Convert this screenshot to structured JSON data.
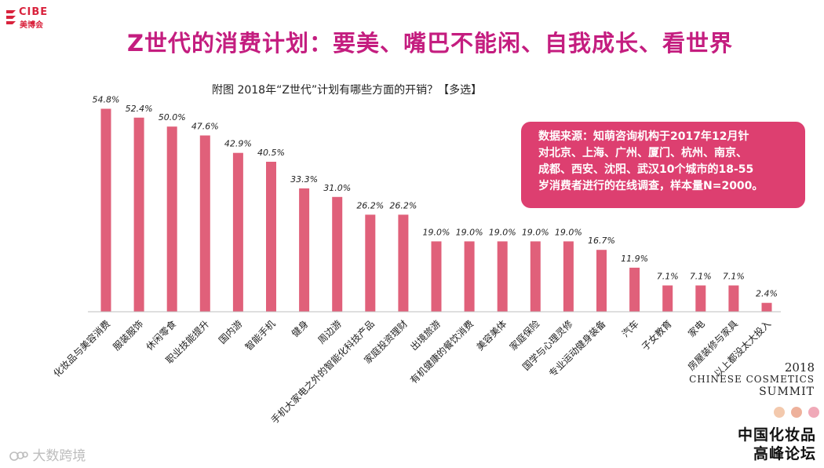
{
  "logo": {
    "brand": "CIBE",
    "sub": "美博会"
  },
  "page_title": "Z世代的消费计划：要美、嘴巴不能闲、自我成长、看世界",
  "source": {
    "lines": [
      "数据来源：知萌咨询机构于2017年12月针",
      "对北京、上海、广州、厦门、杭州、南京、",
      "成都、西安、沈阳、武汉10个城市的18-55",
      "岁消费者进行的在线调查，样本量N=2000。"
    ]
  },
  "summit": {
    "year": "2018",
    "line1": "CHINESE COSMETICS",
    "line2": "SUMMIT",
    "forum_line1": "中国化妆品",
    "forum_line2": "高峰论坛"
  },
  "watermark": "大数跨境",
  "colors": {
    "bar": "#e0607a",
    "title": "#c41d7f",
    "source_bg": "#dd3f70",
    "dot1": "#f3c9ad",
    "dot2": "#eeb19b",
    "dot3": "#f0a9b8"
  },
  "chart_data": {
    "type": "bar",
    "title": "附图  2018年“Z世代”计划有哪些方面的开销？【多选】",
    "xlabel": "",
    "ylabel": "",
    "ylim": [
      0,
      60
    ],
    "grid": false,
    "categories": [
      "化妆品与美容消费",
      "服装服饰",
      "休闲零食",
      "职业技能提升",
      "国内游",
      "智能手机",
      "健身",
      "周边游",
      "手机大家电之外的智能化科技产品",
      "家庭投资理财",
      "出境旅游",
      "有机健康的餐饮消费",
      "美容美体",
      "家庭保险",
      "国学与心理灵修",
      "专业运动健身装备",
      "汽车",
      "子女教育",
      "家电",
      "房屋装修与家具",
      "以上都没太大投入"
    ],
    "values": [
      54.8,
      52.4,
      50.0,
      47.6,
      42.9,
      40.5,
      33.3,
      31.0,
      26.2,
      26.2,
      19.0,
      19.0,
      19.0,
      19.0,
      19.0,
      16.7,
      11.9,
      7.1,
      7.1,
      7.1,
      2.4
    ],
    "value_labels": [
      "54.8%",
      "52.4%",
      "50.0%",
      "47.6%",
      "42.9%",
      "40.5%",
      "33.3%",
      "31.0%",
      "26.2%",
      "26.2%",
      "19.0%",
      "19.0%",
      "19.0%",
      "19.0%",
      "19.0%",
      "16.7%",
      "11.9%",
      "7.1%",
      "7.1%",
      "7.1%",
      "2.4%"
    ]
  }
}
